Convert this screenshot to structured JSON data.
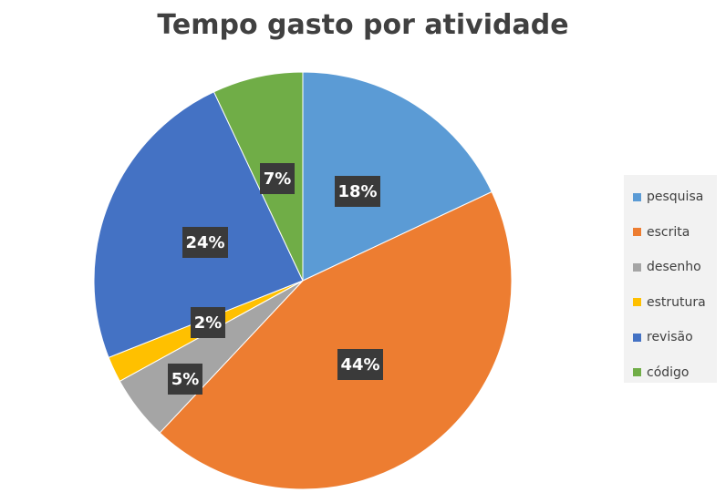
{
  "chart_data": {
    "type": "pie",
    "title": "Tempo gasto por atividade",
    "slices": [
      {
        "label": "pesquisa",
        "value": 18,
        "display": "18%",
        "color": "#5b9bd5"
      },
      {
        "label": "escrita",
        "value": 44,
        "display": "44%",
        "color": "#ed7d31"
      },
      {
        "label": "desenho",
        "value": 5,
        "display": "5%",
        "color": "#a5a5a5"
      },
      {
        "label": "estrutura",
        "value": 2,
        "display": "2%",
        "color": "#ffc000"
      },
      {
        "label": "revisão",
        "value": 24,
        "display": "24%",
        "color": "#4472c4"
      },
      {
        "label": "código",
        "value": 7,
        "display": "7%",
        "color": "#70ad47"
      }
    ],
    "legend_position": "right"
  }
}
